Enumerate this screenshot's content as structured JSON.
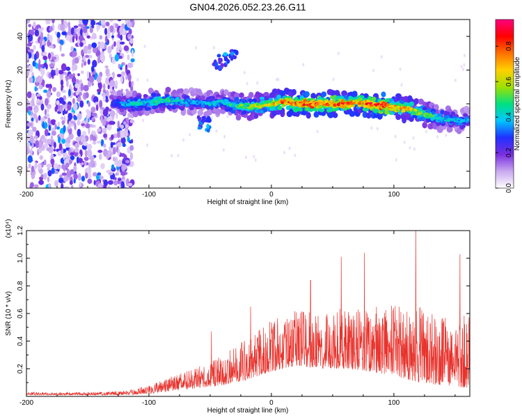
{
  "title": "GN04.2026.052.23.26.G11",
  "chart_data": [
    {
      "type": "heatmap",
      "name": "spectrogram",
      "xlabel": "Height of straight line (km)",
      "ylabel": "Frequency (Hz)",
      "xlim": [
        -200,
        162
      ],
      "ylim": [
        -50,
        50
      ],
      "xticks": [
        -200,
        -100,
        0,
        100
      ],
      "xtick_labels": [
        "-200",
        "-100",
        "0",
        "100"
      ],
      "yticks": [
        -40,
        -20,
        0,
        20,
        40
      ],
      "ytick_labels": [
        "-40",
        "-20",
        "0",
        "20",
        "40"
      ],
      "colorbar": {
        "label": "Normalized spectral amplitude",
        "range": [
          0,
          0.95
        ],
        "ticks": [
          0.0,
          0.2,
          0.4,
          0.6,
          0.8
        ],
        "tick_labels": [
          "0.0",
          "0.2",
          "0.4",
          "0.6",
          "0.8"
        ],
        "colors": [
          "#ffffff",
          "#c8a8f0",
          "#7a2ee0",
          "#2030ff",
          "#00c8ff",
          "#00e080",
          "#a0e000",
          "#ffd000",
          "#ff7000",
          "#ff0000",
          "#ff0080"
        ]
      },
      "noise_region_x": [
        -200,
        -113
      ],
      "ridge": {
        "x": [
          -130,
          -110,
          -100,
          -90,
          -80,
          -70,
          -60,
          -50,
          -40,
          -30,
          -20,
          -10,
          0,
          10,
          20,
          30,
          40,
          50,
          60,
          70,
          80,
          90,
          100,
          110,
          120,
          130,
          140,
          150,
          162
        ],
        "freq_hz": [
          0,
          0,
          1,
          2,
          2,
          1,
          1,
          0,
          1,
          -1,
          -2,
          -1,
          0,
          1,
          0,
          0,
          0,
          0,
          0,
          1,
          0,
          -1,
          -2,
          -3,
          -5,
          -7,
          -9,
          -10,
          -10
        ],
        "amplitude": [
          0.3,
          0.45,
          0.45,
          0.5,
          0.45,
          0.4,
          0.35,
          0.4,
          0.4,
          0.5,
          0.55,
          0.6,
          0.65,
          0.8,
          0.75,
          0.9,
          0.85,
          0.8,
          0.85,
          0.75,
          0.85,
          0.9,
          0.75,
          0.7,
          0.6,
          0.5,
          0.45,
          0.4,
          0.35
        ]
      },
      "features": [
        {
          "x": -42,
          "freq_hz": 25,
          "amplitude": 0.3
        },
        {
          "x": -33,
          "freq_hz": 28,
          "amplitude": 0.35
        },
        {
          "x": -55,
          "freq_hz": -12,
          "amplitude": 0.35
        }
      ]
    },
    {
      "type": "line",
      "name": "snr",
      "xlabel": "Height of straight line (km)",
      "ylabel": "SNR (10 * v/v)",
      "scale_label": "(x10⁴)",
      "color": "#e8322c",
      "xlim": [
        -200,
        162
      ],
      "ylim": [
        0,
        1.2
      ],
      "xticks": [
        -200,
        -100,
        0,
        100
      ],
      "xtick_labels": [
        "-200",
        "-100",
        "0",
        "100"
      ],
      "yticks": [
        0.2,
        0.4,
        0.6,
        0.8,
        1.0,
        1.2
      ],
      "ytick_labels": [
        "0.2",
        "0.4",
        "0.6",
        "0.8",
        "1.0",
        "1.2"
      ],
      "envelope": {
        "x": [
          -200,
          -150,
          -120,
          -100,
          -80,
          -60,
          -40,
          -20,
          0,
          20,
          40,
          60,
          80,
          100,
          120,
          140,
          162
        ],
        "base": [
          0.01,
          0.01,
          0.01,
          0.02,
          0.04,
          0.06,
          0.08,
          0.12,
          0.18,
          0.22,
          0.2,
          0.2,
          0.18,
          0.15,
          0.1,
          0.08,
          0.06
        ],
        "top": [
          0.03,
          0.03,
          0.04,
          0.08,
          0.15,
          0.22,
          0.3,
          0.42,
          0.55,
          0.62,
          0.62,
          0.65,
          0.66,
          0.68,
          0.65,
          0.6,
          0.58
        ]
      },
      "peaks": [
        {
          "x": -49,
          "value": 0.47
        },
        {
          "x": -17,
          "value": 0.65
        },
        {
          "x": 32,
          "value": 0.84
        },
        {
          "x": 57,
          "value": 1.01
        },
        {
          "x": 76,
          "value": 1.04
        },
        {
          "x": 118,
          "value": 1.21
        },
        {
          "x": 154,
          "value": 1.03
        }
      ]
    }
  ]
}
